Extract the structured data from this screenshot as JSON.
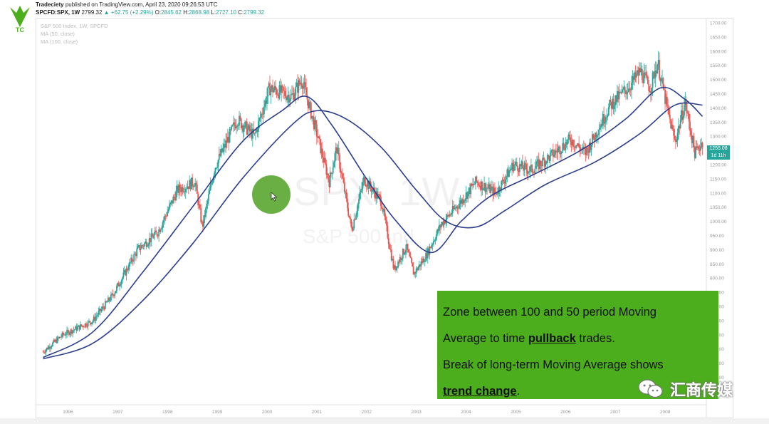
{
  "header": {
    "author": "Tradeciety",
    "published": "published on TradingView.com, April 23, 2020 09:26:53 UTC",
    "symbol": "SPCFD:SPX, 1W",
    "last": "2799.32",
    "change": "▲ +62.75 (+2.29%)",
    "o_label": "O:",
    "o": "2845.62",
    "h_label": "H:",
    "h": "2868.98",
    "l_label": "L:",
    "l": "2727.10",
    "c_label": "C:",
    "c": "2799.32"
  },
  "legend": {
    "series": "S&P 500 Index, 1W, SPCFD",
    "ma50": "MA (50, close)",
    "ma100": "MA (100, close)"
  },
  "watermark": {
    "symbol": "SPX, 1W",
    "name": "S&P 500 Ind"
  },
  "price_tag": {
    "price": "1255.08",
    "time": "1d 11h"
  },
  "callout": {
    "line1": "Zone between 100 and 50 period Moving",
    "line2_pre": "Average to time ",
    "line2_hl": "pullback",
    "line2_post": " trades.",
    "line3": "Break of long-term Moving Average shows",
    "line4_hl": "trend change",
    "line4_post": "."
  },
  "brand": {
    "name": "汇商传媒",
    "icon": "wechat-icon"
  },
  "colors": {
    "up": "#26a69a",
    "down": "#ef5350",
    "ma": "#2c3e8c",
    "callout": "#4cae1c",
    "cursor": "#5aa62f"
  },
  "chart_data": {
    "type": "candlestick",
    "title": "S&P 500 Index, 1W, SPCFD",
    "y_ticks": [
      1700,
      1650,
      1600,
      1550,
      1500,
      1450,
      1400,
      1350,
      1300,
      1250,
      1200,
      1150,
      1100,
      1050,
      1000,
      950,
      900,
      850,
      800,
      750,
      700,
      650,
      600,
      550,
      500,
      450
    ],
    "x_ticks": [
      "1996",
      "1997",
      "1998",
      "1999",
      "2000",
      "2001",
      "2002",
      "2003",
      "2004",
      "2005",
      "2006",
      "2007",
      "2008"
    ],
    "close_path": [
      {
        "x": 1995.5,
        "y": 540
      },
      {
        "x": 1995.9,
        "y": 600
      },
      {
        "x": 1996.5,
        "y": 650
      },
      {
        "x": 1996.9,
        "y": 740
      },
      {
        "x": 1997.4,
        "y": 900
      },
      {
        "x": 1997.8,
        "y": 960
      },
      {
        "x": 1998.2,
        "y": 1110
      },
      {
        "x": 1998.55,
        "y": 1140
      },
      {
        "x": 1998.7,
        "y": 980
      },
      {
        "x": 1998.95,
        "y": 1190
      },
      {
        "x": 1999.4,
        "y": 1360
      },
      {
        "x": 1999.75,
        "y": 1300
      },
      {
        "x": 2000.05,
        "y": 1470
      },
      {
        "x": 2000.5,
        "y": 1440
      },
      {
        "x": 2000.7,
        "y": 1500
      },
      {
        "x": 2001.0,
        "y": 1310
      },
      {
        "x": 2001.25,
        "y": 1140
      },
      {
        "x": 2001.4,
        "y": 1260
      },
      {
        "x": 2001.7,
        "y": 970
      },
      {
        "x": 2001.95,
        "y": 1150
      },
      {
        "x": 2002.3,
        "y": 1070
      },
      {
        "x": 2002.55,
        "y": 830
      },
      {
        "x": 2002.8,
        "y": 910
      },
      {
        "x": 2002.95,
        "y": 815
      },
      {
        "x": 2003.2,
        "y": 880
      },
      {
        "x": 2003.5,
        "y": 990
      },
      {
        "x": 2003.9,
        "y": 1070
      },
      {
        "x": 2004.2,
        "y": 1140
      },
      {
        "x": 2004.6,
        "y": 1100
      },
      {
        "x": 2004.95,
        "y": 1200
      },
      {
        "x": 2005.3,
        "y": 1180
      },
      {
        "x": 2005.7,
        "y": 1230
      },
      {
        "x": 2006.1,
        "y": 1290
      },
      {
        "x": 2006.4,
        "y": 1240
      },
      {
        "x": 2006.9,
        "y": 1410
      },
      {
        "x": 2007.3,
        "y": 1480
      },
      {
        "x": 2007.5,
        "y": 1530
      },
      {
        "x": 2007.7,
        "y": 1470
      },
      {
        "x": 2007.85,
        "y": 1560
      },
      {
        "x": 2008.05,
        "y": 1390
      },
      {
        "x": 2008.2,
        "y": 1280
      },
      {
        "x": 2008.4,
        "y": 1420
      },
      {
        "x": 2008.6,
        "y": 1240
      },
      {
        "x": 2008.75,
        "y": 1280
      }
    ],
    "ma50_path": [
      {
        "x": 1995.5,
        "y": 520
      },
      {
        "x": 1996.5,
        "y": 610
      },
      {
        "x": 1997.5,
        "y": 820
      },
      {
        "x": 1998.5,
        "y": 1050
      },
      {
        "x": 1999.5,
        "y": 1280
      },
      {
        "x": 2000.3,
        "y": 1390
      },
      {
        "x": 2000.8,
        "y": 1440
      },
      {
        "x": 2001.3,
        "y": 1340
      },
      {
        "x": 2002.0,
        "y": 1150
      },
      {
        "x": 2002.6,
        "y": 1000
      },
      {
        "x": 2003.3,
        "y": 890
      },
      {
        "x": 2003.9,
        "y": 1000
      },
      {
        "x": 2004.5,
        "y": 1090
      },
      {
        "x": 2005.3,
        "y": 1160
      },
      {
        "x": 2006.3,
        "y": 1250
      },
      {
        "x": 2007.2,
        "y": 1360
      },
      {
        "x": 2007.9,
        "y": 1470
      },
      {
        "x": 2008.4,
        "y": 1430
      },
      {
        "x": 2008.75,
        "y": 1370
      }
    ],
    "ma100_path": [
      {
        "x": 1995.5,
        "y": 515
      },
      {
        "x": 1996.5,
        "y": 570
      },
      {
        "x": 1997.5,
        "y": 720
      },
      {
        "x": 1998.5,
        "y": 920
      },
      {
        "x": 1999.5,
        "y": 1150
      },
      {
        "x": 2000.5,
        "y": 1340
      },
      {
        "x": 2001.0,
        "y": 1390
      },
      {
        "x": 2001.6,
        "y": 1360
      },
      {
        "x": 2002.3,
        "y": 1260
      },
      {
        "x": 2003.0,
        "y": 1110
      },
      {
        "x": 2003.6,
        "y": 1000
      },
      {
        "x": 2004.2,
        "y": 980
      },
      {
        "x": 2004.8,
        "y": 1040
      },
      {
        "x": 2005.6,
        "y": 1130
      },
      {
        "x": 2006.6,
        "y": 1210
      },
      {
        "x": 2007.5,
        "y": 1310
      },
      {
        "x": 2008.2,
        "y": 1410
      },
      {
        "x": 2008.75,
        "y": 1410
      }
    ],
    "last_price": 1255.08
  }
}
